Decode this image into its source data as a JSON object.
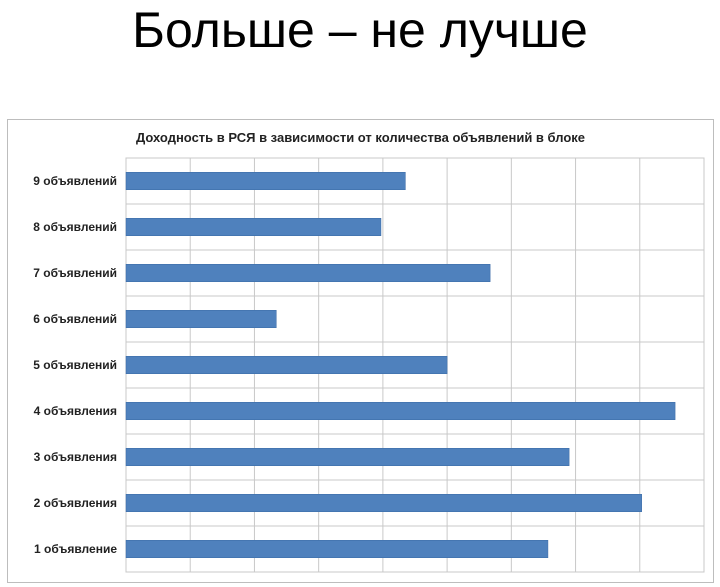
{
  "slide": {
    "title": "Больше – не лучше"
  },
  "colors": {
    "bar": "#4f81bd",
    "bar_stroke": "#3a6aa5",
    "grid": "#c8c8c8"
  },
  "chart_data": {
    "type": "bar",
    "orientation": "horizontal",
    "title": "Доходность в РСЯ в зависимости от количества объявлений в блоке",
    "xlabel": "",
    "ylabel": "",
    "categories": [
      "9 объявлений",
      "8 объявлений",
      "7 объявлений",
      "6 объявлений",
      "5 объявлений",
      "4 объявления",
      "3 объявления",
      "2 объявления",
      "1 объявление"
    ],
    "values": [
      4.35,
      3.97,
      5.67,
      2.34,
      5.0,
      8.55,
      6.9,
      8.03,
      6.57
    ],
    "xlim": [
      0,
      9
    ],
    "grid": true,
    "legend": "none",
    "tick_labels_shown": false
  }
}
